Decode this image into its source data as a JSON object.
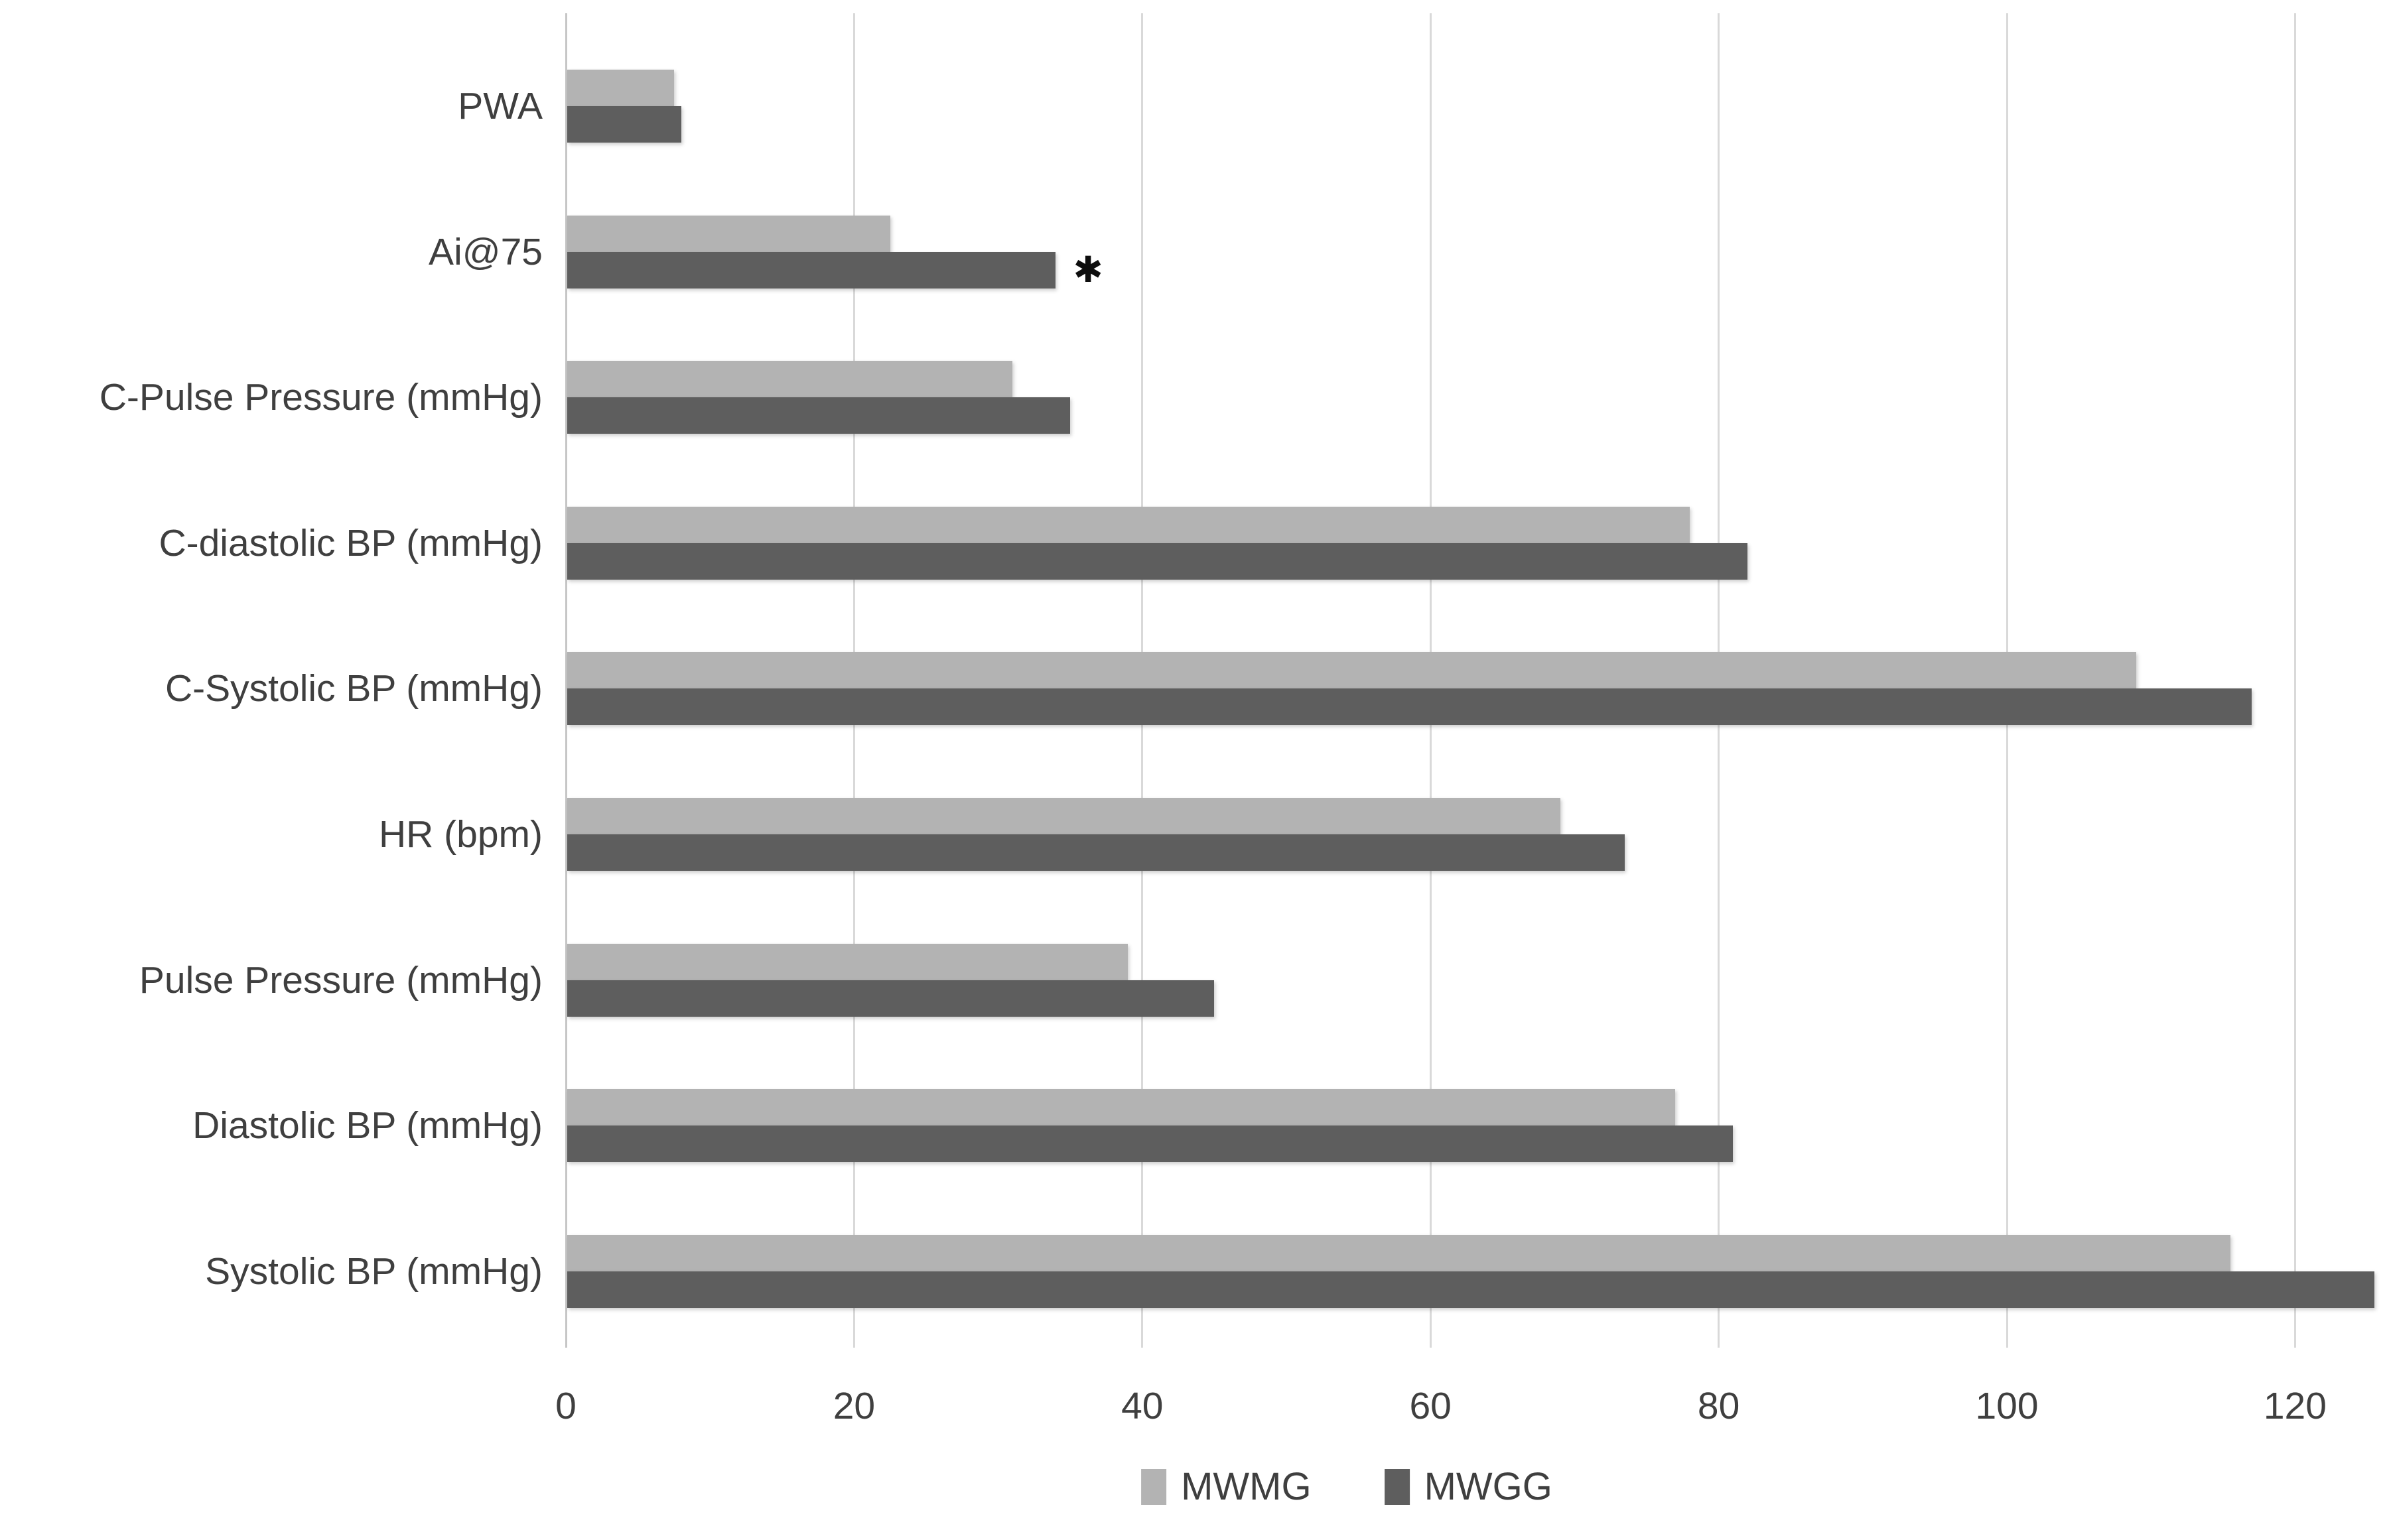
{
  "chart_data": {
    "type": "bar",
    "orientation": "horizontal",
    "title": "",
    "xlabel": "",
    "ylabel": "",
    "categories": [
      "PWA",
      "Ai@75",
      "C-Pulse Pressure (mmHg)",
      "C-diastolic BP (mmHg)",
      "C-Systolic BP (mmHg)",
      "HR (bpm)",
      "Pulse Pressure (mmHg)",
      "Diastolic BP (mmHg)",
      "Systolic BP (mmHg)"
    ],
    "series": [
      {
        "name": "MWMG",
        "color": "#b3b3b3",
        "values": [
          7.5,
          22.5,
          31,
          78,
          109,
          69,
          39,
          77,
          115.5
        ]
      },
      {
        "name": "MWGG",
        "color": "#5e5e5e",
        "values": [
          8,
          34,
          35,
          82,
          117,
          73.5,
          45,
          81,
          125.5
        ]
      }
    ],
    "annotations": [
      {
        "symbol": "✱",
        "category": "Ai@75",
        "category_index": 1,
        "series": "MWGG",
        "at_value": 34
      }
    ],
    "x_axis": {
      "min": 0,
      "max": 126,
      "ticks": [
        0,
        20,
        40,
        60,
        80,
        100,
        120
      ]
    },
    "legend": {
      "position": "bottom",
      "items": [
        "MWMG",
        "MWGG"
      ]
    },
    "grid": "vertical-gridlines",
    "colors": {
      "background": "#ffffff",
      "gridline": "#d9d9d9",
      "axis_line": "#c6c6c6",
      "text": "#3f3f3f",
      "annotation": "#0d0d0d"
    }
  }
}
